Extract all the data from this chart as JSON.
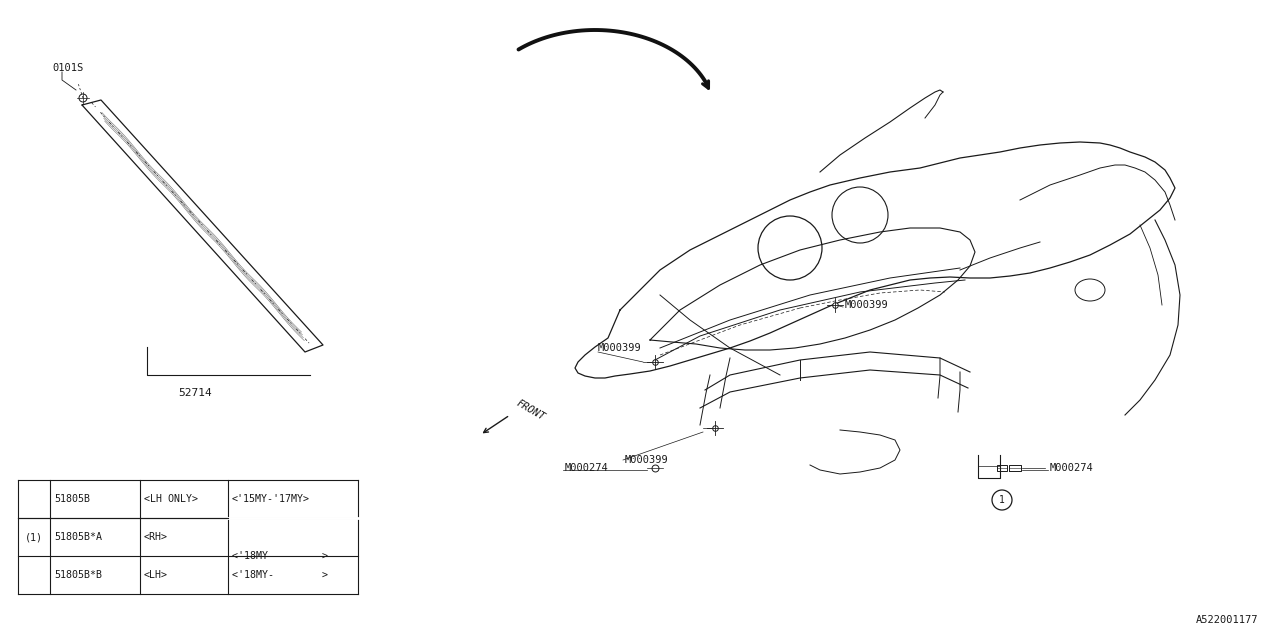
{
  "bg_color": "#ffffff",
  "line_color": "#1a1a1a",
  "fig_width": 12.8,
  "fig_height": 6.4,
  "part_number_ref": "A522001177",
  "label_0101S": "0101S",
  "label_52714": "52714",
  "labels_M000399": [
    "M000399",
    "M000399",
    "M000399"
  ],
  "labels_M000274": [
    "M000274",
    "M000274"
  ],
  "label_FRONT": "FRONT",
  "table_col0": [
    "",
    "(1)",
    ""
  ],
  "table_col1": [
    "51805B",
    "51805B*A",
    "51805B*B"
  ],
  "table_col2": [
    "<LH ONLY>",
    "<RH>",
    "<LH>"
  ],
  "table_col3": [
    "<'15MY-'17MY>",
    "",
    "<'18MY-        >"
  ],
  "font_mono": "monospace"
}
